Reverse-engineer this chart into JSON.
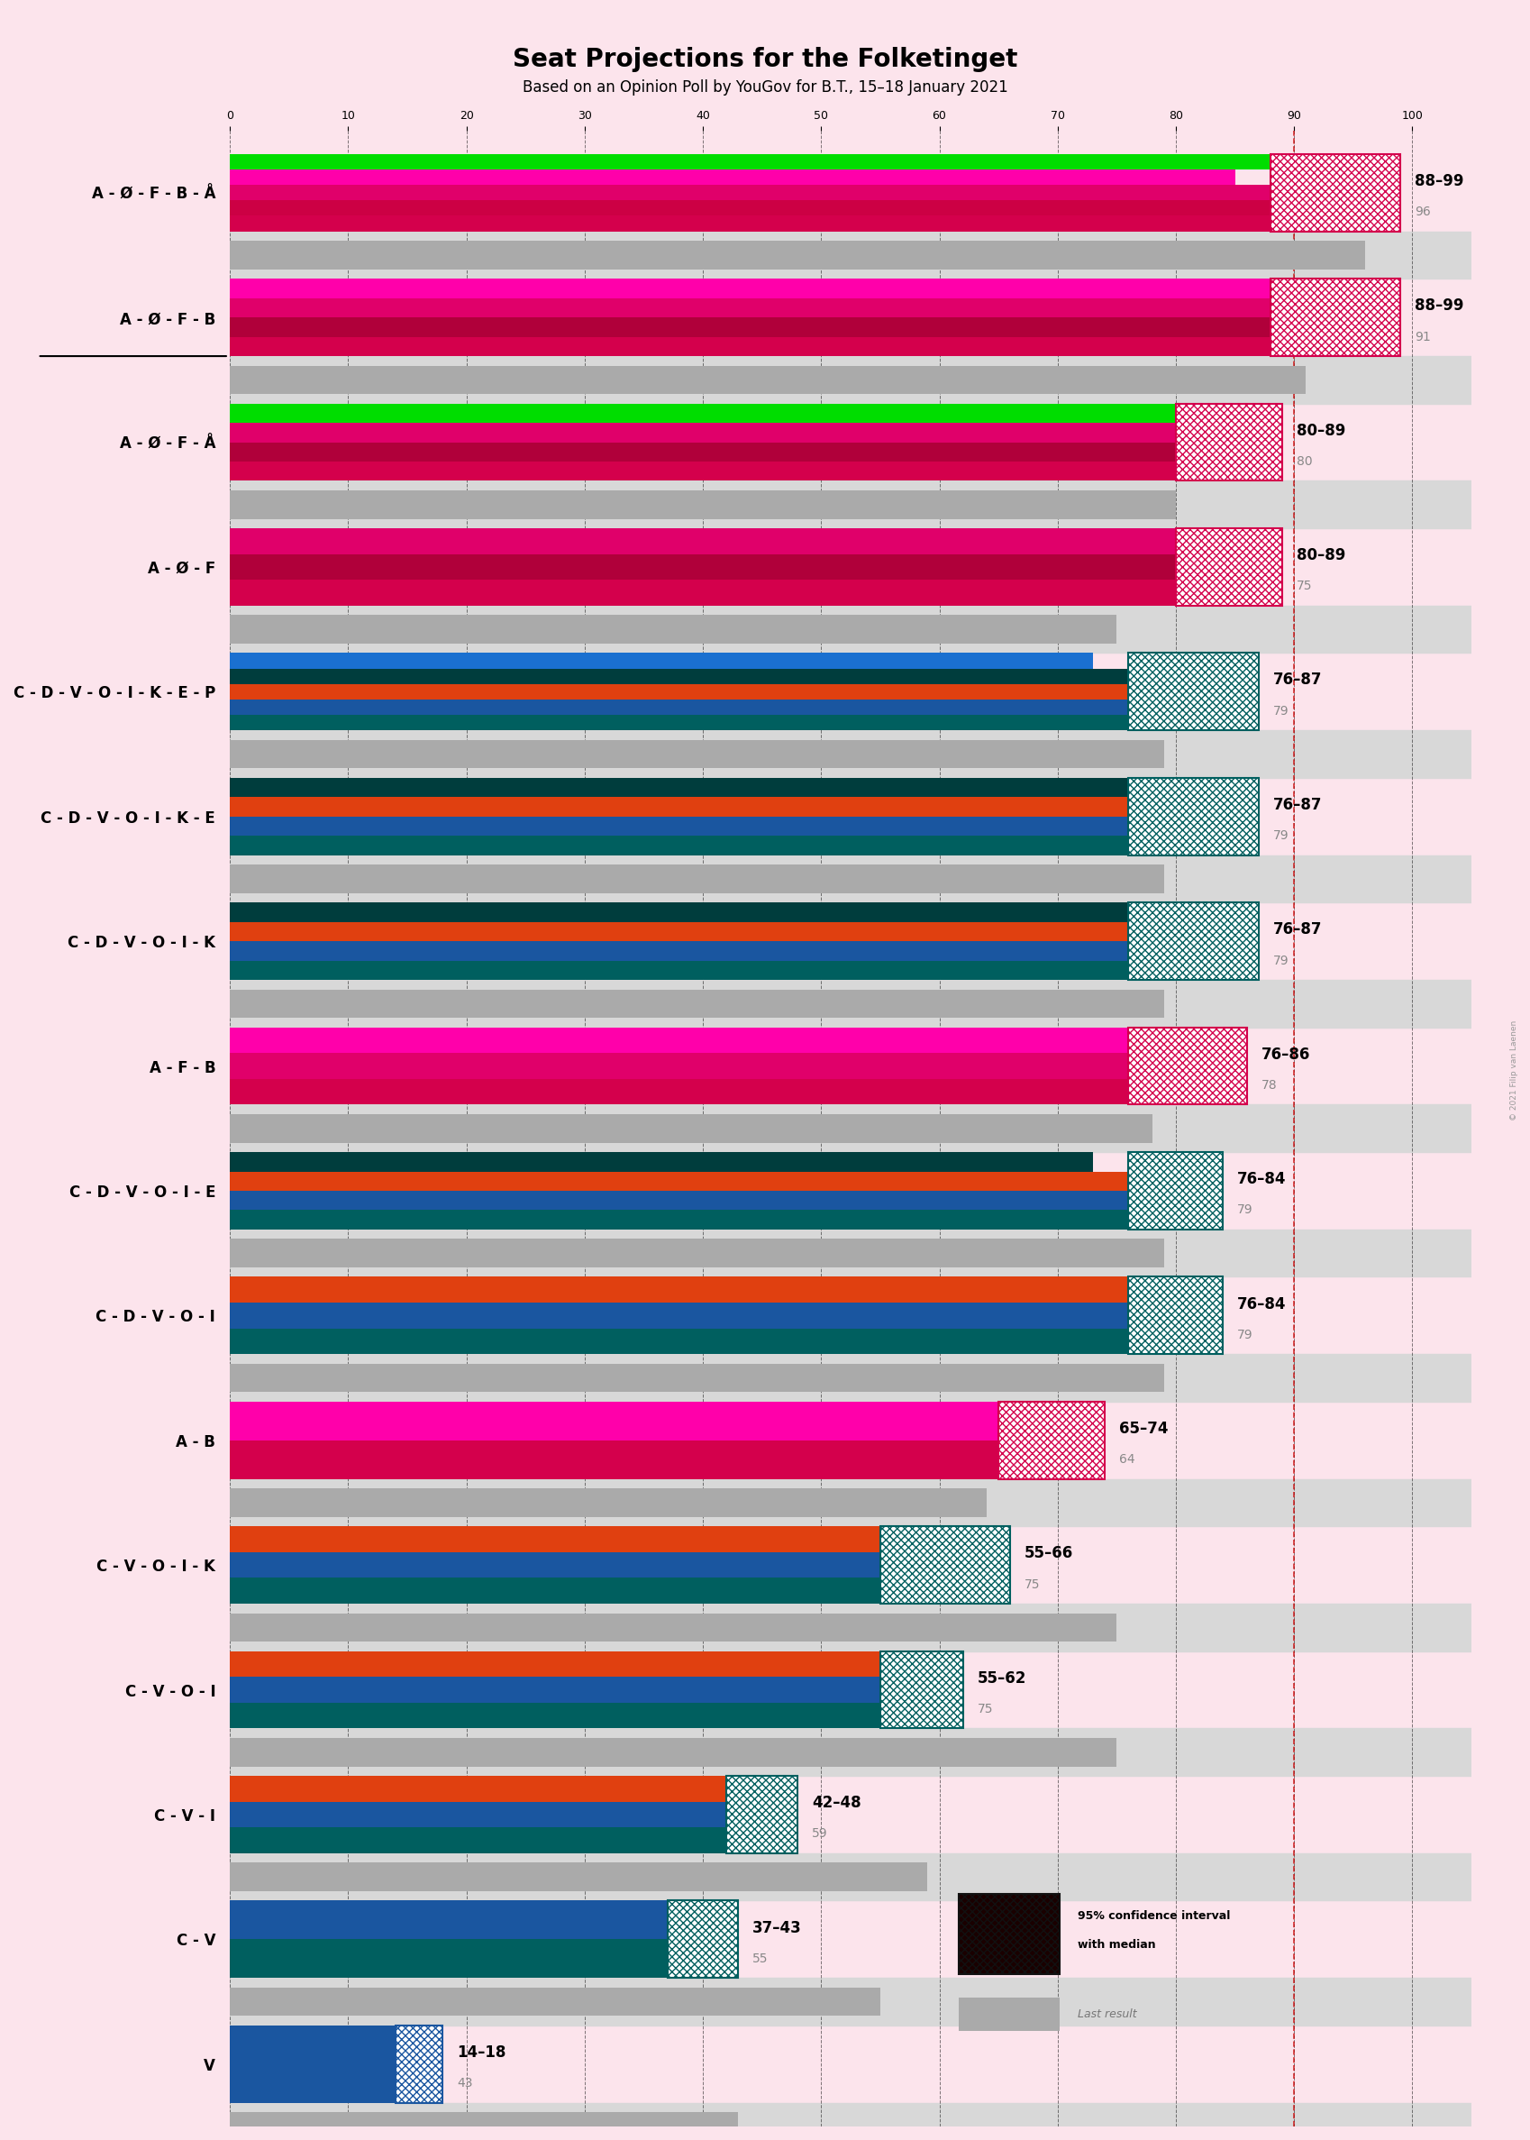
{
  "title": "Seat Projections for the Folketinget",
  "subtitle": "Based on an Opinion Poll by YouGov for B.T., 15–18 January 2021",
  "background_color": "#fce4ec",
  "rows": [
    {
      "label": "A - Ø - F - B - Å",
      "underline": false,
      "ci_low": 88,
      "ci_high": 99,
      "ci_label": "88–99",
      "last_result": 96,
      "sub_bars": [
        {
          "color": "#d4004c",
          "value": 99
        },
        {
          "color": "#cc0044",
          "value": 95
        },
        {
          "color": "#e0006a",
          "value": 90
        },
        {
          "color": "#ff00aa",
          "value": 85
        },
        {
          "color": "#00dd00",
          "value": 96
        }
      ],
      "ci_hatch_color": "#d4004c",
      "type": "left"
    },
    {
      "label": "A - Ø - F - B",
      "underline": true,
      "ci_low": 88,
      "ci_high": 99,
      "ci_label": "88–99",
      "last_result": 91,
      "sub_bars": [
        {
          "color": "#d4004c",
          "value": 99
        },
        {
          "color": "#b0003a",
          "value": 93
        },
        {
          "color": "#e0006a",
          "value": 88
        },
        {
          "color": "#ff00aa",
          "value": 91
        }
      ],
      "ci_hatch_color": "#d4004c",
      "type": "left"
    },
    {
      "label": "A - Ø - F - Å",
      "underline": false,
      "ci_low": 80,
      "ci_high": 89,
      "ci_label": "80–89",
      "last_result": 80,
      "sub_bars": [
        {
          "color": "#d4004c",
          "value": 89
        },
        {
          "color": "#b0003a",
          "value": 84
        },
        {
          "color": "#e0006a",
          "value": 80
        },
        {
          "color": "#00dd00",
          "value": 80
        }
      ],
      "ci_hatch_color": "#d4004c",
      "type": "left"
    },
    {
      "label": "A - Ø - F",
      "underline": false,
      "ci_low": 80,
      "ci_high": 89,
      "ci_label": "80–89",
      "last_result": 75,
      "sub_bars": [
        {
          "color": "#d4004c",
          "value": 89
        },
        {
          "color": "#b0003a",
          "value": 84
        },
        {
          "color": "#e0006a",
          "value": 80
        }
      ],
      "ci_hatch_color": "#d4004c",
      "type": "left"
    },
    {
      "label": "C - D - V - O - I - K - E - P",
      "underline": false,
      "ci_low": 76,
      "ci_high": 87,
      "ci_label": "76–87",
      "last_result": 79,
      "sub_bars": [
        {
          "color": "#005f5f",
          "value": 87
        },
        {
          "color": "#1a56a0",
          "value": 83
        },
        {
          "color": "#e04010",
          "value": 79
        },
        {
          "color": "#003d3d",
          "value": 76
        },
        {
          "color": "#1a70d0",
          "value": 73
        }
      ],
      "ci_hatch_color": "#005f5f",
      "type": "right"
    },
    {
      "label": "C - D - V - O - I - K - E",
      "underline": false,
      "ci_low": 76,
      "ci_high": 87,
      "ci_label": "76–87",
      "last_result": 79,
      "sub_bars": [
        {
          "color": "#005f5f",
          "value": 87
        },
        {
          "color": "#1a56a0",
          "value": 83
        },
        {
          "color": "#e04010",
          "value": 79
        },
        {
          "color": "#003d3d",
          "value": 76
        }
      ],
      "ci_hatch_color": "#005f5f",
      "type": "right"
    },
    {
      "label": "C - D - V - O - I - K",
      "underline": false,
      "ci_low": 76,
      "ci_high": 87,
      "ci_label": "76–87",
      "last_result": 79,
      "sub_bars": [
        {
          "color": "#005f5f",
          "value": 87
        },
        {
          "color": "#1a56a0",
          "value": 83
        },
        {
          "color": "#e04010",
          "value": 79
        },
        {
          "color": "#003d3d",
          "value": 76
        }
      ],
      "ci_hatch_color": "#005f5f",
      "type": "right"
    },
    {
      "label": "A - F - B",
      "underline": false,
      "ci_low": 76,
      "ci_high": 86,
      "ci_label": "76–86",
      "last_result": 78,
      "sub_bars": [
        {
          "color": "#d4004c",
          "value": 86
        },
        {
          "color": "#e0006a",
          "value": 80
        },
        {
          "color": "#ff00aa",
          "value": 76
        }
      ],
      "ci_hatch_color": "#d4004c",
      "type": "left"
    },
    {
      "label": "C - D - V - O - I - E",
      "underline": false,
      "ci_low": 76,
      "ci_high": 84,
      "ci_label": "76–84",
      "last_result": 79,
      "sub_bars": [
        {
          "color": "#005f5f",
          "value": 84
        },
        {
          "color": "#1a56a0",
          "value": 80
        },
        {
          "color": "#e04010",
          "value": 76
        },
        {
          "color": "#003d3d",
          "value": 73
        }
      ],
      "ci_hatch_color": "#005f5f",
      "type": "right"
    },
    {
      "label": "C - D - V - O - I",
      "underline": false,
      "ci_low": 76,
      "ci_high": 84,
      "ci_label": "76–84",
      "last_result": 79,
      "sub_bars": [
        {
          "color": "#005f5f",
          "value": 84
        },
        {
          "color": "#1a56a0",
          "value": 80
        },
        {
          "color": "#e04010",
          "value": 76
        }
      ],
      "ci_hatch_color": "#005f5f",
      "type": "right"
    },
    {
      "label": "A - B",
      "underline": false,
      "ci_low": 65,
      "ci_high": 74,
      "ci_label": "65–74",
      "last_result": 64,
      "sub_bars": [
        {
          "color": "#d4004c",
          "value": 74
        },
        {
          "color": "#ff00aa",
          "value": 65
        }
      ],
      "ci_hatch_color": "#d4004c",
      "type": "left"
    },
    {
      "label": "C - V - O - I - K",
      "underline": false,
      "ci_low": 55,
      "ci_high": 66,
      "ci_label": "55–66",
      "last_result": 75,
      "sub_bars": [
        {
          "color": "#005f5f",
          "value": 66
        },
        {
          "color": "#1a56a0",
          "value": 61
        },
        {
          "color": "#e04010",
          "value": 55
        }
      ],
      "ci_hatch_color": "#005f5f",
      "type": "right"
    },
    {
      "label": "C - V - O - I",
      "underline": false,
      "ci_low": 55,
      "ci_high": 62,
      "ci_label": "55–62",
      "last_result": 75,
      "sub_bars": [
        {
          "color": "#005f5f",
          "value": 62
        },
        {
          "color": "#1a56a0",
          "value": 58
        },
        {
          "color": "#e04010",
          "value": 55
        }
      ],
      "ci_hatch_color": "#005f5f",
      "type": "right"
    },
    {
      "label": "C - V - I",
      "underline": false,
      "ci_low": 42,
      "ci_high": 48,
      "ci_label": "42–48",
      "last_result": 59,
      "sub_bars": [
        {
          "color": "#005f5f",
          "value": 48
        },
        {
          "color": "#1a56a0",
          "value": 44
        },
        {
          "color": "#e04010",
          "value": 42
        }
      ],
      "ci_hatch_color": "#005f5f",
      "type": "right"
    },
    {
      "label": "C - V",
      "underline": false,
      "ci_low": 37,
      "ci_high": 43,
      "ci_label": "37–43",
      "last_result": 55,
      "sub_bars": [
        {
          "color": "#005f5f",
          "value": 43
        },
        {
          "color": "#1a56a0",
          "value": 39
        }
      ],
      "ci_hatch_color": "#005f5f",
      "type": "right"
    },
    {
      "label": "V",
      "underline": false,
      "ci_low": 14,
      "ci_high": 18,
      "ci_label": "14–18",
      "last_result": 43,
      "sub_bars": [
        {
          "color": "#1a56a0",
          "value": 18
        }
      ],
      "ci_hatch_color": "#1a56a0",
      "type": "right"
    }
  ],
  "xlim_max": 105,
  "tick_positions": [
    0,
    10,
    20,
    30,
    40,
    50,
    60,
    70,
    80,
    90,
    100
  ],
  "majority_line": 90,
  "grid_bg_color": "#d8d8d8",
  "grid_line_color": "#000000",
  "majority_line_color": "#cc0000"
}
